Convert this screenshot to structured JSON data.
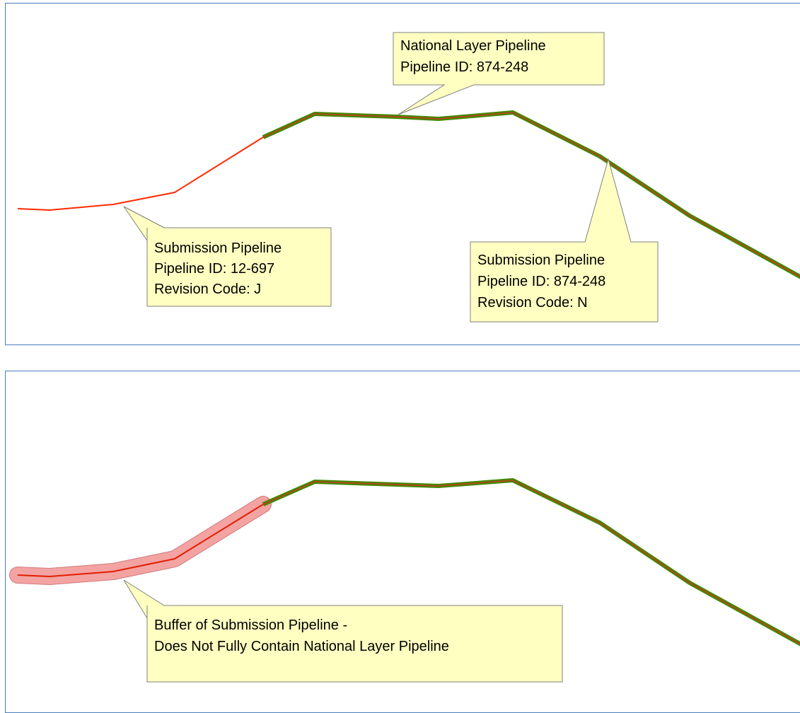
{
  "colors": {
    "panel_border": "#4a7ebb",
    "callout_fill": "#ffffc2",
    "callout_stroke": "#808080",
    "submission_line": "#ff2a00",
    "national_line": "#3c8a00",
    "national_inner": "#b04a1a",
    "buffer_fill": "#f4a3a3",
    "buffer_stroke": "#d07a7a"
  },
  "top_panel": {
    "national_callout": {
      "line1": "National Layer Pipeline",
      "line2": "Pipeline ID: 874-248"
    },
    "submission_left_callout": {
      "line1": "Submission Pipeline",
      "line2": "Pipeline ID: 12-697",
      "line3": "Revision Code: J"
    },
    "submission_right_callout": {
      "line1": "Submission Pipeline",
      "line2": "Pipeline ID: 874-248",
      "line3": "Revision Code: N"
    }
  },
  "bottom_panel": {
    "buffer_callout": {
      "line1": "Buffer of Submission Pipeline -",
      "line2": "Does Not Fully Contain National Layer Pipeline"
    }
  }
}
